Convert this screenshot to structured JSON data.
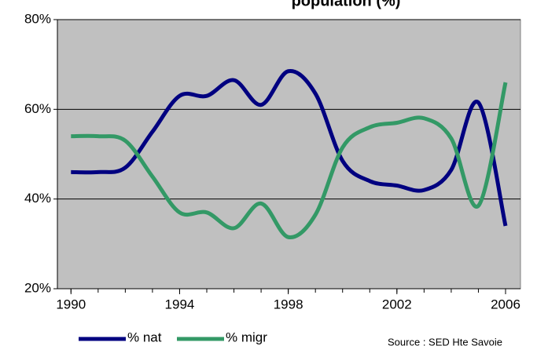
{
  "chart_data": {
    "type": "line",
    "title": "population (%)",
    "x": [
      1990,
      1991,
      1992,
      1993,
      1994,
      1995,
      1996,
      1997,
      1998,
      1999,
      2000,
      2001,
      2002,
      2003,
      2004,
      2005,
      2006
    ],
    "series": [
      {
        "name": "% nat",
        "color": "#000080",
        "values": [
          46,
          46,
          47,
          55,
          63,
          63,
          66.5,
          61,
          68.5,
          63.5,
          48.5,
          44,
          43,
          42,
          46.5,
          61.5,
          34
        ]
      },
      {
        "name": "% migr",
        "color": "#339966",
        "values": [
          54,
          54,
          53,
          45,
          37,
          37,
          33.5,
          39,
          31.5,
          36.5,
          51.5,
          56,
          57,
          58,
          53.5,
          38.5,
          66
        ]
      }
    ],
    "xlim": [
      1989.5,
      2006.55
    ],
    "xticks": [
      1990,
      1994,
      1998,
      2002,
      2006
    ],
    "ylim": [
      20,
      80
    ],
    "yticks": [
      {
        "value": 20,
        "label": "20%"
      },
      {
        "value": 40,
        "label": "40%"
      },
      {
        "value": 60,
        "label": "60%"
      },
      {
        "value": 80,
        "label": "80%"
      }
    ],
    "grid": true,
    "background": "#c0c0c0",
    "annotation": "Source : SED Hte Savoie"
  }
}
